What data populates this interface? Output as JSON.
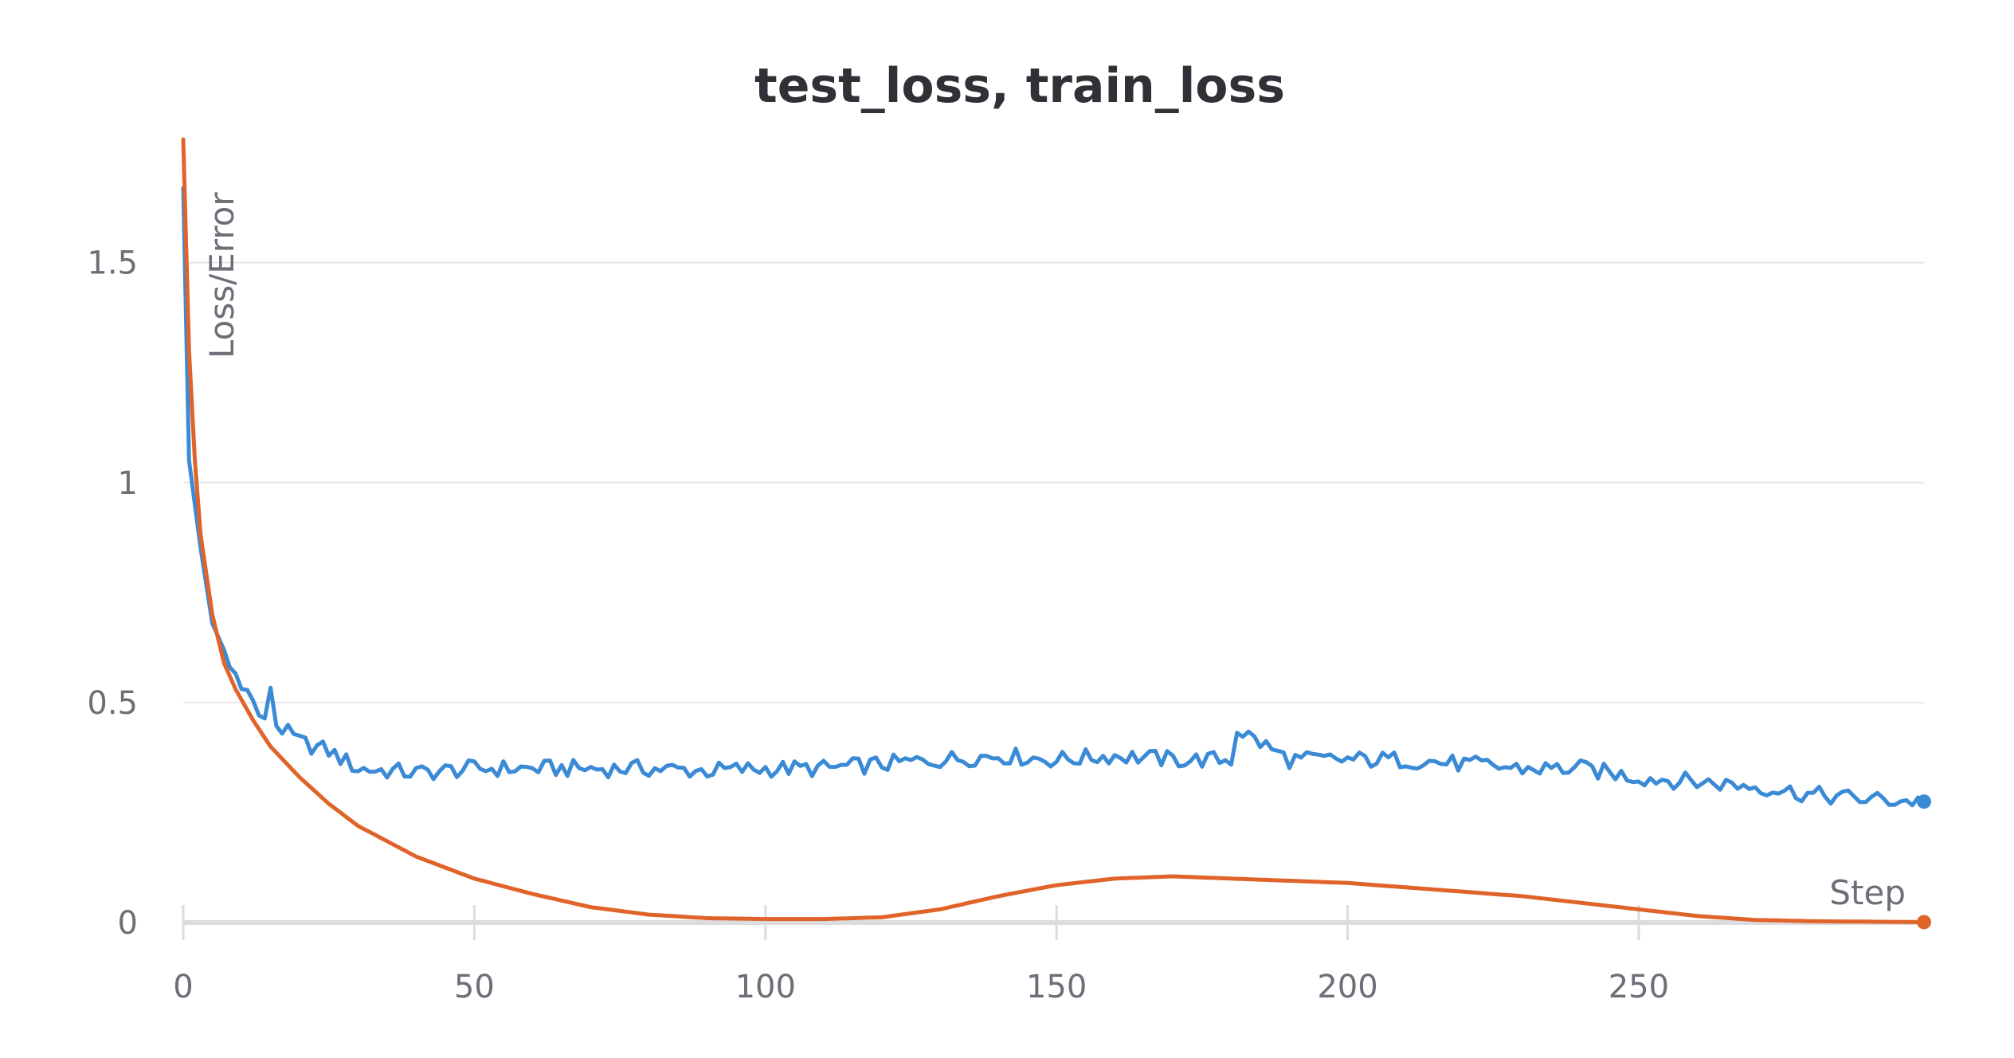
{
  "chart_data": {
    "type": "line",
    "title": "test_loss, train_loss",
    "xlabel": "Step",
    "ylabel": "Loss/Error",
    "xlim": [
      0,
      299
    ],
    "ylim": [
      0,
      1.78
    ],
    "x_ticks": [
      0,
      50,
      100,
      150,
      200,
      250
    ],
    "x_tick_labels": [
      "0",
      "50",
      "100",
      "150",
      "200",
      "250"
    ],
    "y_ticks": [
      0,
      0.5,
      1,
      1.5
    ],
    "y_tick_labels": [
      "0",
      "0.5",
      "1",
      "1.5"
    ],
    "grid": true,
    "legend": "none",
    "series": [
      {
        "name": "test_loss",
        "color": "#3a8ad6",
        "x": [
          0,
          1,
          3,
          5,
          7,
          8,
          10,
          12,
          14,
          15,
          16,
          18,
          20,
          25,
          30,
          40,
          50,
          60,
          70,
          80,
          90,
          100,
          110,
          120,
          130,
          140,
          150,
          160,
          170,
          180,
          181,
          190,
          200,
          210,
          220,
          230,
          240,
          250,
          260,
          270,
          280,
          290,
          299
        ],
        "y": [
          1.67,
          1.05,
          0.85,
          0.68,
          0.62,
          0.58,
          0.55,
          0.5,
          0.45,
          0.54,
          0.45,
          0.43,
          0.41,
          0.39,
          0.35,
          0.34,
          0.35,
          0.35,
          0.35,
          0.35,
          0.345,
          0.35,
          0.35,
          0.36,
          0.37,
          0.38,
          0.37,
          0.38,
          0.37,
          0.37,
          0.44,
          0.37,
          0.37,
          0.37,
          0.36,
          0.35,
          0.35,
          0.33,
          0.32,
          0.31,
          0.29,
          0.28,
          0.275
        ]
      },
      {
        "name": "train_loss",
        "color": "#e0642a",
        "x": [
          0,
          1,
          2,
          3,
          5,
          7,
          9,
          12,
          15,
          20,
          25,
          30,
          40,
          50,
          60,
          70,
          80,
          90,
          100,
          110,
          120,
          130,
          140,
          150,
          160,
          170,
          180,
          190,
          200,
          210,
          220,
          230,
          240,
          250,
          260,
          270,
          280,
          290,
          299
        ],
        "y": [
          1.78,
          1.3,
          1.05,
          0.88,
          0.7,
          0.59,
          0.53,
          0.46,
          0.4,
          0.33,
          0.27,
          0.22,
          0.15,
          0.1,
          0.065,
          0.035,
          0.018,
          0.01,
          0.008,
          0.008,
          0.012,
          0.03,
          0.06,
          0.085,
          0.1,
          0.105,
          0.1,
          0.095,
          0.09,
          0.08,
          0.07,
          0.06,
          0.045,
          0.03,
          0.015,
          0.006,
          0.003,
          0.002,
          0.001
        ]
      }
    ]
  }
}
